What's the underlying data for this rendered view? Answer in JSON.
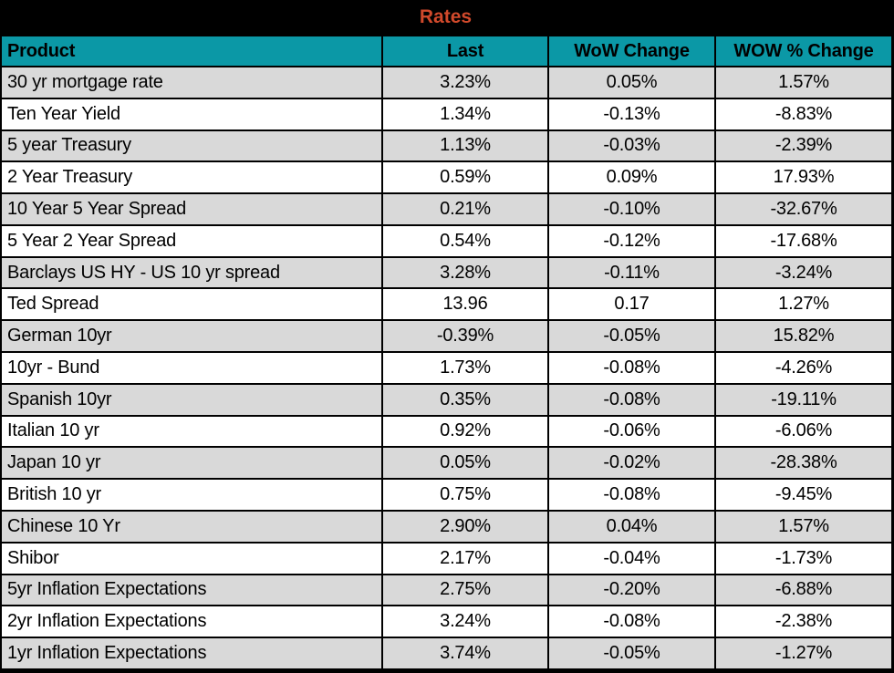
{
  "title": "Rates",
  "colors": {
    "title_bar_bg": "#000000",
    "title_text": "#D0492B",
    "header_bg": "#0B98A6",
    "header_text": "#000000",
    "row_odd": "#D9D9D9",
    "row_even": "#FFFFFF",
    "border": "#000000"
  },
  "chart_data": {
    "type": "table",
    "title": "Rates",
    "columns": [
      "Product",
      "Last",
      "WoW Change",
      "WOW % Change"
    ],
    "rows": [
      [
        "30 yr mortgage rate",
        "3.23%",
        "0.05%",
        "1.57%"
      ],
      [
        "Ten Year Yield",
        "1.34%",
        "-0.13%",
        "-8.83%"
      ],
      [
        "5 year Treasury",
        "1.13%",
        "-0.03%",
        "-2.39%"
      ],
      [
        "2 Year Treasury",
        "0.59%",
        "0.09%",
        "17.93%"
      ],
      [
        "10 Year 5 Year Spread",
        "0.21%",
        "-0.10%",
        "-32.67%"
      ],
      [
        "5 Year 2 Year Spread",
        "0.54%",
        "-0.12%",
        "-17.68%"
      ],
      [
        "Barclays US HY - US 10 yr spread",
        "3.28%",
        "-0.11%",
        "-3.24%"
      ],
      [
        "Ted Spread",
        "13.96",
        "0.17",
        "1.27%"
      ],
      [
        "German 10yr",
        "-0.39%",
        "-0.05%",
        "15.82%"
      ],
      [
        "10yr - Bund",
        "1.73%",
        "-0.08%",
        "-4.26%"
      ],
      [
        "Spanish 10yr",
        "0.35%",
        "-0.08%",
        "-19.11%"
      ],
      [
        "Italian 10 yr",
        "0.92%",
        "-0.06%",
        "-6.06%"
      ],
      [
        "Japan 10 yr",
        "0.05%",
        "-0.02%",
        "-28.38%"
      ],
      [
        "British 10 yr",
        "0.75%",
        "-0.08%",
        "-9.45%"
      ],
      [
        "Chinese 10 Yr",
        "2.90%",
        "0.04%",
        "1.57%"
      ],
      [
        "Shibor",
        "2.17%",
        "-0.04%",
        "-1.73%"
      ],
      [
        "5yr Inflation Expectations",
        "2.75%",
        "-0.20%",
        "-6.88%"
      ],
      [
        "2yr Inflation Expectations",
        "3.24%",
        "-0.08%",
        "-2.38%"
      ],
      [
        "1yr Inflation Expectations",
        "3.74%",
        "-0.05%",
        "-1.27%"
      ]
    ]
  }
}
